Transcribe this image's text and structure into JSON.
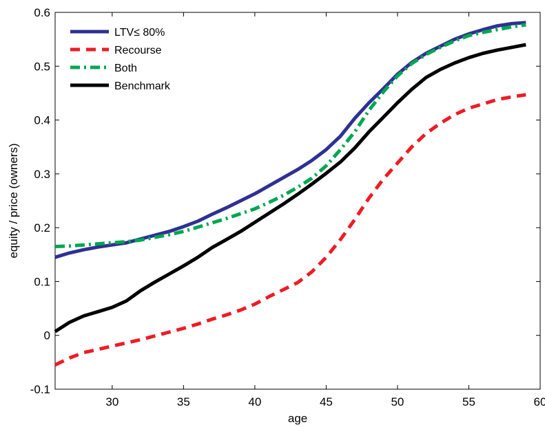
{
  "chart_data": {
    "type": "line",
    "xlabel": "age",
    "ylabel": "equity / price (owners)",
    "xlim": [
      26,
      60
    ],
    "ylim": [
      -0.1,
      0.6
    ],
    "xticks": [
      "30",
      "35",
      "40",
      "45",
      "50",
      "55",
      "60"
    ],
    "yticks": [
      "-0.1",
      "0",
      "0.1",
      "0.2",
      "0.3",
      "0.4",
      "0.5",
      "0.6"
    ],
    "grid": false,
    "legend_position": "top-left",
    "x": [
      26,
      27,
      28,
      29,
      30,
      31,
      32,
      33,
      34,
      35,
      36,
      37,
      38,
      39,
      40,
      41,
      42,
      43,
      44,
      45,
      46,
      47,
      48,
      49,
      50,
      51,
      52,
      53,
      54,
      55,
      56,
      57,
      58,
      59
    ],
    "series": [
      {
        "name": "LTV≤ 80%",
        "color": "#2e3192",
        "style": "solid",
        "values": [
          0.145,
          0.153,
          0.159,
          0.164,
          0.168,
          0.172,
          0.179,
          0.186,
          0.193,
          0.202,
          0.212,
          0.225,
          0.237,
          0.25,
          0.263,
          0.278,
          0.293,
          0.308,
          0.325,
          0.345,
          0.37,
          0.403,
          0.432,
          0.458,
          0.485,
          0.507,
          0.524,
          0.537,
          0.55,
          0.56,
          0.568,
          0.575,
          0.579,
          0.581
        ]
      },
      {
        "name": "Recourse",
        "color": "#ed1c24",
        "style": "dashed",
        "values": [
          -0.055,
          -0.042,
          -0.032,
          -0.026,
          -0.02,
          -0.014,
          -0.008,
          -0.001,
          0.006,
          0.013,
          0.021,
          0.03,
          0.038,
          0.047,
          0.058,
          0.072,
          0.085,
          0.098,
          0.118,
          0.145,
          0.178,
          0.215,
          0.255,
          0.29,
          0.32,
          0.35,
          0.375,
          0.394,
          0.41,
          0.422,
          0.43,
          0.438,
          0.443,
          0.447
        ]
      },
      {
        "name": "Both",
        "color": "#00a651",
        "style": "dashdot",
        "values": [
          0.165,
          0.166,
          0.168,
          0.17,
          0.172,
          0.174,
          0.177,
          0.182,
          0.187,
          0.193,
          0.201,
          0.209,
          0.217,
          0.226,
          0.235,
          0.247,
          0.26,
          0.275,
          0.292,
          0.315,
          0.345,
          0.378,
          0.418,
          0.452,
          0.482,
          0.505,
          0.522,
          0.535,
          0.547,
          0.557,
          0.563,
          0.568,
          0.573,
          0.577
        ]
      },
      {
        "name": "Benchmark",
        "color": "#000000",
        "style": "solid",
        "values": [
          0.007,
          0.024,
          0.036,
          0.044,
          0.052,
          0.064,
          0.083,
          0.099,
          0.114,
          0.129,
          0.145,
          0.163,
          0.178,
          0.193,
          0.21,
          0.227,
          0.244,
          0.262,
          0.281,
          0.301,
          0.322,
          0.348,
          0.378,
          0.405,
          0.432,
          0.457,
          0.479,
          0.494,
          0.506,
          0.516,
          0.524,
          0.53,
          0.535,
          0.54
        ]
      }
    ]
  }
}
